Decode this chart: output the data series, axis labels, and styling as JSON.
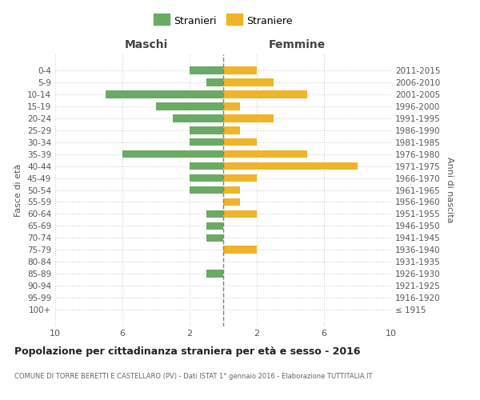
{
  "age_groups": [
    "0-4",
    "5-9",
    "10-14",
    "15-19",
    "20-24",
    "25-29",
    "30-34",
    "35-39",
    "40-44",
    "45-49",
    "50-54",
    "55-59",
    "60-64",
    "65-69",
    "70-74",
    "75-79",
    "80-84",
    "85-89",
    "90-94",
    "95-99",
    "100+"
  ],
  "birth_years": [
    "2011-2015",
    "2006-2010",
    "2001-2005",
    "1996-2000",
    "1991-1995",
    "1986-1990",
    "1981-1985",
    "1976-1980",
    "1971-1975",
    "1966-1970",
    "1961-1965",
    "1956-1960",
    "1951-1955",
    "1946-1950",
    "1941-1945",
    "1936-1940",
    "1931-1935",
    "1926-1930",
    "1921-1925",
    "1916-1920",
    "≤ 1915"
  ],
  "maschi": [
    2,
    1,
    7,
    4,
    3,
    2,
    2,
    6,
    2,
    2,
    2,
    0,
    1,
    1,
    1,
    0,
    0,
    1,
    0,
    0,
    0
  ],
  "femmine": [
    2,
    3,
    5,
    1,
    3,
    1,
    2,
    5,
    8,
    2,
    1,
    1,
    2,
    0,
    0,
    2,
    0,
    0,
    0,
    0,
    0
  ],
  "maschi_color": "#6aaa64",
  "femmine_color": "#f0b429",
  "center_line_color": "#888855",
  "background_color": "#ffffff",
  "grid_color": "#d0d0d0",
  "title": "Popolazione per cittadinanza straniera per età e sesso - 2016",
  "subtitle": "COMUNE DI TORRE BERETTI E CASTELLARO (PV) - Dati ISTAT 1° gennaio 2016 - Elaborazione TUTTITALIA.IT",
  "legend_maschi": "Stranieri",
  "legend_femmine": "Straniere",
  "xlabel_left": "Maschi",
  "xlabel_right": "Femmine",
  "ylabel": "Fasce di età",
  "ylabel_right": "Anni di nascita"
}
